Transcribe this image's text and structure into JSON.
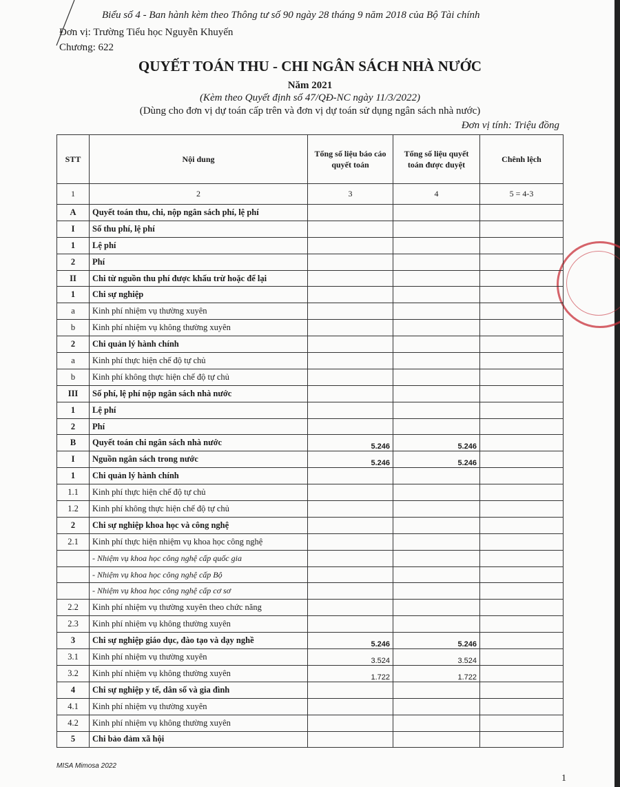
{
  "header": {
    "form_note": "Biểu số 4 - Ban hành kèm theo Thông tư số 90 ngày 28 tháng 9 năm 2018 của Bộ Tài chính",
    "unit": "Đơn vị: Trường Tiểu học Nguyễn Khuyến",
    "chapter": "Chương: 622",
    "title": "QUYẾT TOÁN THU - CHI NGÂN SÁCH NHÀ NƯỚC",
    "year": "Năm 2021",
    "decision": "(Kèm theo Quyết định số 47/QĐ-NC ngày 11/3/2022)",
    "usage": "(Dùng cho đơn vị dự toán cấp trên và đơn vị dự toán sử dụng ngân sách nhà nước)",
    "currency_unit": "Đơn vị tính: Triệu đồng"
  },
  "table": {
    "columns": [
      "STT",
      "Nội dung",
      "Tổng số liệu báo cáo quyết toán",
      "Tổng số liệu quyết toán được duyệt",
      "Chênh lệch"
    ],
    "index_row": [
      "1",
      "2",
      "3",
      "4",
      "5 = 4-3"
    ],
    "rows": [
      {
        "stt": "A",
        "content": "Quyết toán thu, chi, nộp ngân sách phí, lệ phí",
        "c3": "",
        "c4": "",
        "c5": "",
        "style": "b"
      },
      {
        "stt": "I",
        "content": "Số thu phí, lệ phí",
        "c3": "",
        "c4": "",
        "c5": "",
        "style": "b"
      },
      {
        "stt": "1",
        "content": "Lệ phí",
        "c3": "",
        "c4": "",
        "c5": "",
        "style": "b"
      },
      {
        "stt": "2",
        "content": "Phí",
        "c3": "",
        "c4": "",
        "c5": "",
        "style": "b"
      },
      {
        "stt": "II",
        "content": "Chi từ nguồn thu phí được khấu trừ hoặc để lại",
        "c3": "",
        "c4": "",
        "c5": "",
        "style": "b"
      },
      {
        "stt": "1",
        "content": "Chi sự nghiệp",
        "c3": "",
        "c4": "",
        "c5": "",
        "style": "b"
      },
      {
        "stt": "a",
        "content": "Kinh phí nhiệm vụ thường xuyên",
        "c3": "",
        "c4": "",
        "c5": "",
        "style": ""
      },
      {
        "stt": "b",
        "content": "Kinh phí nhiệm vụ không thường xuyên",
        "c3": "",
        "c4": "",
        "c5": "",
        "style": ""
      },
      {
        "stt": "2",
        "content": "Chi quản lý hành chính",
        "c3": "",
        "c4": "",
        "c5": "",
        "style": "b"
      },
      {
        "stt": "a",
        "content": "Kinh phí thực hiện chế độ tự chủ",
        "c3": "",
        "c4": "",
        "c5": "",
        "style": ""
      },
      {
        "stt": "b",
        "content": "Kinh phí không thực hiện chế độ tự chủ",
        "c3": "",
        "c4": "",
        "c5": "",
        "style": ""
      },
      {
        "stt": "III",
        "content": "Số phí, lệ phí nộp ngân sách nhà nước",
        "c3": "",
        "c4": "",
        "c5": "",
        "style": "b"
      },
      {
        "stt": "1",
        "content": "Lệ phí",
        "c3": "",
        "c4": "",
        "c5": "",
        "style": "b"
      },
      {
        "stt": "2",
        "content": "Phí",
        "c3": "",
        "c4": "",
        "c5": "",
        "style": "b"
      },
      {
        "stt": "B",
        "content": "Quyết toán chi ngân sách nhà nước",
        "c3": "5.246",
        "c4": "5.246",
        "c5": "",
        "style": "b"
      },
      {
        "stt": "I",
        "content": "Nguồn ngân sách trong nước",
        "c3": "5.246",
        "c4": "5.246",
        "c5": "",
        "style": "b"
      },
      {
        "stt": "1",
        "content": "Chi quản lý hành chính",
        "c3": "",
        "c4": "",
        "c5": "",
        "style": "b"
      },
      {
        "stt": "1.1",
        "content": "Kinh phí thực hiện chế độ tự chủ",
        "c3": "",
        "c4": "",
        "c5": "",
        "style": ""
      },
      {
        "stt": "1.2",
        "content": "Kinh phí không thực hiện chế độ tự chủ",
        "c3": "",
        "c4": "",
        "c5": "",
        "style": ""
      },
      {
        "stt": "2",
        "content": "Chi sự nghiệp khoa học và công nghệ",
        "c3": "",
        "c4": "",
        "c5": "",
        "style": "b"
      },
      {
        "stt": "2.1",
        "content": "Kinh phí thực hiện nhiệm vụ khoa học công nghệ",
        "c3": "",
        "c4": "",
        "c5": "",
        "style": ""
      },
      {
        "stt": "",
        "content": "- Nhiệm vụ khoa học công nghệ cấp quốc gia",
        "c3": "",
        "c4": "",
        "c5": "",
        "style": "i"
      },
      {
        "stt": "",
        "content": "- Nhiệm vụ khoa học công nghệ cấp Bộ",
        "c3": "",
        "c4": "",
        "c5": "",
        "style": "i"
      },
      {
        "stt": "",
        "content": "- Nhiệm vụ khoa học công nghệ cấp cơ sơ",
        "c3": "",
        "c4": "",
        "c5": "",
        "style": "i"
      },
      {
        "stt": "2.2",
        "content": "Kinh phí nhiệm vụ thường xuyên theo chức năng",
        "c3": "",
        "c4": "",
        "c5": "",
        "style": ""
      },
      {
        "stt": "2.3",
        "content": "Kinh phí nhiệm vụ không thường xuyên",
        "c3": "",
        "c4": "",
        "c5": "",
        "style": ""
      },
      {
        "stt": "3",
        "content": "Chi sự nghiệp giáo dục, đào tạo và dạy nghề",
        "c3": "5.246",
        "c4": "5.246",
        "c5": "",
        "style": "b"
      },
      {
        "stt": "3.1",
        "content": "Kinh phí nhiệm vụ thường xuyên",
        "c3": "3.524",
        "c4": "3.524",
        "c5": "",
        "style": ""
      },
      {
        "stt": "3.2",
        "content": "Kinh phí nhiệm vụ không thường xuyên",
        "c3": "1.722",
        "c4": "1.722",
        "c5": "",
        "style": ""
      },
      {
        "stt": "4",
        "content": "Chi sự nghiệp y tế, dân số và gia đình",
        "c3": "",
        "c4": "",
        "c5": "",
        "style": "b"
      },
      {
        "stt": "4.1",
        "content": "Kinh phí nhiệm vụ thường xuyên",
        "c3": "",
        "c4": "",
        "c5": "",
        "style": ""
      },
      {
        "stt": "4.2",
        "content": "Kinh phí nhiệm vụ không thường xuyên",
        "c3": "",
        "c4": "",
        "c5": "",
        "style": ""
      },
      {
        "stt": "5",
        "content": "Chi bảo đảm xã hội",
        "c3": "",
        "c4": "",
        "c5": "",
        "style": "b"
      }
    ]
  },
  "footer": {
    "software": "MISA Mimosa 2022",
    "page": "1"
  },
  "colors": {
    "stamp": "#c8303a"
  }
}
